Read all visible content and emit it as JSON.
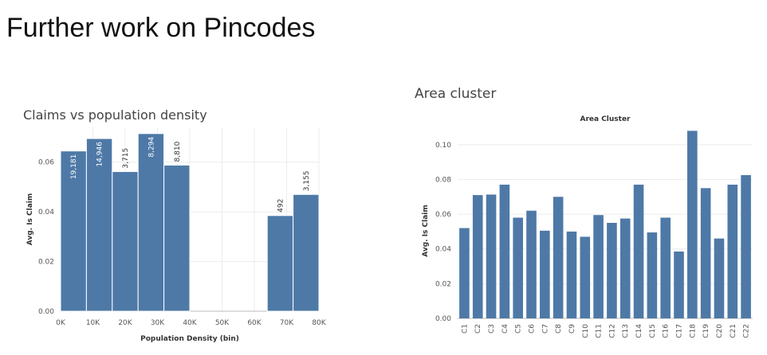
{
  "page": {
    "title": "Further work on Pincodes"
  },
  "chart_data": [
    {
      "type": "bar",
      "title": "Claims vs population density",
      "xlabel": "Population Density (bin)",
      "ylabel": "Avg. Is Claim",
      "x_tick_labels": [
        "0K",
        "10K",
        "20K",
        "30K",
        "40K",
        "50K",
        "60K",
        "70K",
        "80K"
      ],
      "y_tick_labels": [
        "0.00",
        "0.02",
        "0.04",
        "0.06"
      ],
      "ylim": [
        0,
        0.074
      ],
      "xlim": [
        0,
        80000
      ],
      "bin_width": 8000,
      "bins": [
        {
          "x0": 0,
          "value": 0.0645,
          "label": "19,181"
        },
        {
          "x0": 8000,
          "value": 0.0695,
          "label": "14,946"
        },
        {
          "x0": 16000,
          "value": 0.0562,
          "label": "3,715"
        },
        {
          "x0": 24000,
          "value": 0.0715,
          "label": "8,294"
        },
        {
          "x0": 32000,
          "value": 0.0588,
          "label": "8,810"
        },
        {
          "x0": 64000,
          "value": 0.0385,
          "label": "492"
        },
        {
          "x0": 72000,
          "value": 0.047,
          "label": "3,155"
        }
      ],
      "color": "#4e79a7",
      "grid": true
    },
    {
      "type": "bar",
      "title": "Area cluster",
      "subtitle": "Area Cluster",
      "ylabel": "Avg. Is Claim",
      "y_tick_labels": [
        "0.00",
        "0.02",
        "0.04",
        "0.06",
        "0.08",
        "0.10"
      ],
      "ylim": [
        0,
        0.11
      ],
      "categories": [
        "C1",
        "C2",
        "C3",
        "C4",
        "C5",
        "C6",
        "C7",
        "C8",
        "C9",
        "C10",
        "C11",
        "C12",
        "C13",
        "C14",
        "C15",
        "C16",
        "C17",
        "C18",
        "C19",
        "C20",
        "C21",
        "C22"
      ],
      "values": [
        0.052,
        0.071,
        0.0713,
        0.077,
        0.058,
        0.062,
        0.0505,
        0.07,
        0.05,
        0.047,
        0.0595,
        0.055,
        0.0575,
        0.077,
        0.0495,
        0.058,
        0.0385,
        0.108,
        0.075,
        0.046,
        0.077,
        0.0825
      ],
      "color": "#4e79a7",
      "grid": true
    }
  ]
}
